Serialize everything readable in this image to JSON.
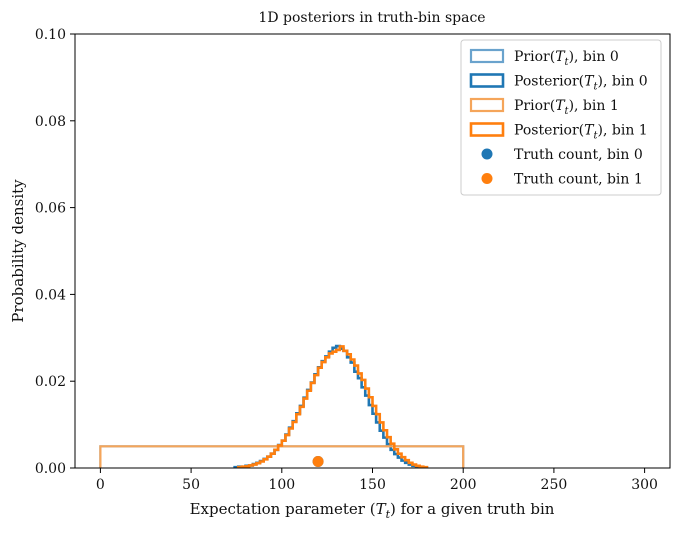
{
  "chart_data": {
    "type": "histogram-step",
    "title": "1D posteriors in truth-bin space",
    "xlabel": "Expectation parameter (T_t) for a given truth bin",
    "ylabel": "Probability density",
    "xlim": [
      -14,
      314
    ],
    "ylim": [
      0.0,
      0.1
    ],
    "xticks": [
      0,
      50,
      100,
      150,
      200,
      250,
      300
    ],
    "yticks": [
      0.0,
      0.02,
      0.04,
      0.06,
      0.08,
      0.1
    ],
    "ytick_labels": [
      "0.00",
      "0.02",
      "0.04",
      "0.06",
      "0.08",
      "0.10"
    ],
    "grid": false,
    "legend_position": "top-right",
    "bin_width": 2,
    "series": [
      {
        "name": "Prior(T_t), bin 0",
        "kind": "prior",
        "color": "#6aa3cd",
        "x": [
          0,
          200
        ],
        "density": 0.005
      },
      {
        "name": "Posterior(T_t), bin 0",
        "kind": "posterior",
        "color": "#1f77b4",
        "bins_start": 74,
        "values": [
          0.0002,
          0.0003,
          0.0002,
          0.0005,
          0.0006,
          0.0009,
          0.0012,
          0.0016,
          0.0021,
          0.0026,
          0.0033,
          0.0042,
          0.0053,
          0.0063,
          0.0077,
          0.0093,
          0.0108,
          0.0126,
          0.0143,
          0.0162,
          0.018,
          0.0197,
          0.0216,
          0.0232,
          0.0246,
          0.0257,
          0.0268,
          0.0277,
          0.0281,
          0.0275,
          0.027,
          0.0255,
          0.0243,
          0.0222,
          0.0207,
          0.0186,
          0.0167,
          0.0145,
          0.0125,
          0.0105,
          0.0086,
          0.007,
          0.0055,
          0.0042,
          0.0032,
          0.0024,
          0.0017,
          0.0012,
          0.0008,
          0.0005,
          0.0003,
          0.0002,
          0.0001
        ]
      },
      {
        "name": "Prior(T_t), bin 1",
        "kind": "prior",
        "color": "#f5a55a",
        "x": [
          0,
          200
        ],
        "density": 0.005
      },
      {
        "name": "Posterior(T_t), bin 1",
        "kind": "posterior",
        "color": "#ff7f0e",
        "bins_start": 76,
        "values": [
          0.0002,
          0.0003,
          0.0004,
          0.0006,
          0.0008,
          0.0011,
          0.0015,
          0.002,
          0.0026,
          0.0033,
          0.0042,
          0.0052,
          0.0063,
          0.0076,
          0.0091,
          0.0106,
          0.0124,
          0.0141,
          0.016,
          0.0178,
          0.0196,
          0.0214,
          0.0231,
          0.0244,
          0.0255,
          0.0264,
          0.0268,
          0.0272,
          0.028,
          0.027,
          0.0262,
          0.025,
          0.0236,
          0.0218,
          0.0203,
          0.0183,
          0.0163,
          0.0143,
          0.0124,
          0.0105,
          0.0087,
          0.0071,
          0.0056,
          0.0043,
          0.0033,
          0.0025,
          0.0018,
          0.0012,
          0.0008,
          0.0005,
          0.0003,
          0.0002
        ]
      },
      {
        "name": "Truth count, bin 0",
        "kind": "point",
        "color": "#1f77b4",
        "x": 120,
        "y": 0.0015
      },
      {
        "name": "Truth count, bin 1",
        "kind": "point",
        "color": "#ff7f0e",
        "x": 120,
        "y": 0.0015
      }
    ]
  }
}
